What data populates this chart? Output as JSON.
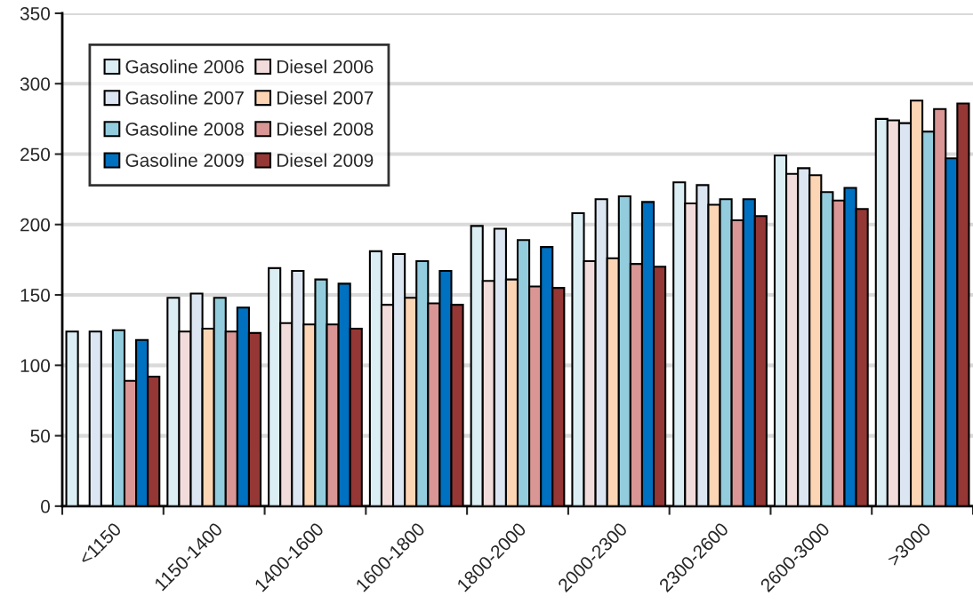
{
  "chart_data": {
    "type": "bar",
    "categories": [
      "<1150",
      "1150-1400",
      "1400-1600",
      "1600-1800",
      "1800-2000",
      "2000-2300",
      "2300-2600",
      "2600-3000",
      ">3000"
    ],
    "series": [
      {
        "name": "Gasoline 2006",
        "color": "#dbeef4",
        "values": [
          124,
          148,
          169,
          181,
          199,
          208,
          230,
          249,
          275
        ]
      },
      {
        "name": "Diesel 2006",
        "color": "#f2dcdb",
        "values": [
          null,
          124,
          130,
          143,
          160,
          174,
          215,
          236,
          274
        ]
      },
      {
        "name": "Gasoline 2007",
        "color": "#dce6f2",
        "values": [
          124,
          151,
          167,
          179,
          197,
          218,
          228,
          240,
          272
        ]
      },
      {
        "name": "Diesel 2007",
        "color": "#fcd5b5",
        "values": [
          null,
          126,
          129,
          148,
          161,
          176,
          214,
          235,
          288
        ]
      },
      {
        "name": "Gasoline 2008",
        "color": "#93cddd",
        "values": [
          125,
          148,
          161,
          174,
          189,
          220,
          218,
          223,
          266
        ]
      },
      {
        "name": "Diesel 2008",
        "color": "#d99694",
        "values": [
          89,
          124,
          129,
          144,
          156,
          172,
          203,
          217,
          282
        ]
      },
      {
        "name": "Gasoline 2009",
        "color": "#0070c0",
        "values": [
          118,
          141,
          158,
          167,
          184,
          216,
          218,
          226,
          247
        ]
      },
      {
        "name": "Diesel 2009",
        "color": "#953735",
        "values": [
          92,
          123,
          126,
          143,
          155,
          170,
          206,
          211,
          286
        ]
      }
    ],
    "ylim": [
      0,
      350
    ],
    "yticks": [
      0,
      50,
      100,
      150,
      200,
      250,
      300,
      350
    ],
    "grid": "y",
    "legend": "top left"
  }
}
